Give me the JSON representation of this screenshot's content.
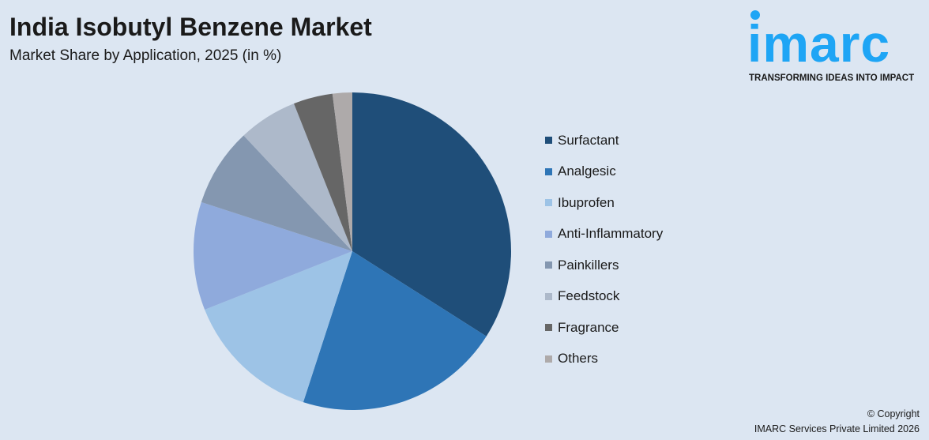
{
  "title": "India Isobutyl Benzene Market",
  "subtitle": "Market Share by Application, 2025 (in %)",
  "logo": {
    "word": "imarc",
    "tagline": "TRANSFORMING IDEAS INTO IMPACT",
    "color": "#1ea5f5"
  },
  "copyright": {
    "line1": "© Copyright",
    "line2": "IMARC Services Private Limited 2026"
  },
  "chart_data": {
    "type": "pie",
    "title": "India Isobutyl Benzene Market",
    "subtitle": "Market Share by Application, 2025 (in %)",
    "legend_position": "right",
    "start_angle": "top, clockwise",
    "series": [
      {
        "name": "Surfactant",
        "value": 34,
        "color": "#1f4e79"
      },
      {
        "name": "Analgesic",
        "value": 21,
        "color": "#2e75b6"
      },
      {
        "name": "Ibuprofen",
        "value": 14,
        "color": "#9dc3e6"
      },
      {
        "name": "Anti-Inflammatory",
        "value": 11,
        "color": "#8faadc"
      },
      {
        "name": "Painkillers",
        "value": 8,
        "color": "#8497b0"
      },
      {
        "name": "Feedstock",
        "value": 6,
        "color": "#adb9ca"
      },
      {
        "name": "Fragrance",
        "value": 4,
        "color": "#666666"
      },
      {
        "name": "Others",
        "value": 2,
        "color": "#aeaaaa"
      }
    ]
  }
}
